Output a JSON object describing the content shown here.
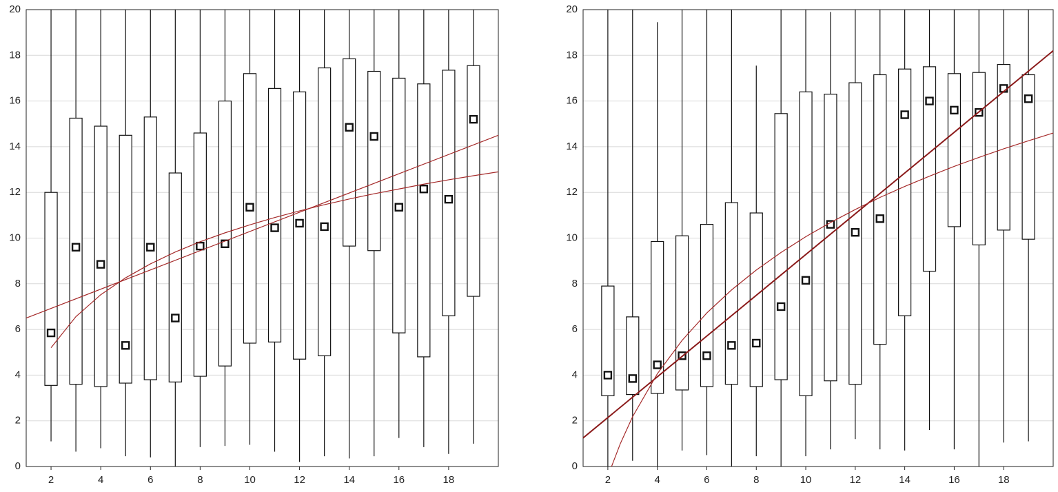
{
  "chart_data": [
    {
      "type": "box",
      "x": [
        2,
        3,
        4,
        5,
        6,
        7,
        8,
        9,
        10,
        11,
        12,
        13,
        14,
        15,
        16,
        17,
        18,
        19
      ],
      "boxes": {
        "min": [
          1.1,
          0.65,
          0.8,
          0.45,
          0.4,
          0,
          0.85,
          0.9,
          0.95,
          0.65,
          0.2,
          0.45,
          0.35,
          0.45,
          1.25,
          0.85,
          0.55,
          1.0
        ],
        "q1": [
          3.55,
          3.6,
          3.5,
          3.65,
          3.8,
          3.7,
          3.95,
          4.4,
          5.4,
          5.45,
          4.7,
          4.85,
          9.65,
          9.45,
          5.85,
          4.8,
          6.6,
          7.45
        ],
        "marker": [
          5.85,
          9.6,
          8.85,
          5.3,
          9.6,
          6.5,
          9.65,
          9.75,
          11.35,
          10.45,
          10.65,
          10.5,
          14.85,
          14.45,
          11.35,
          12.15,
          11.7,
          15.2
        ],
        "q3": [
          12.0,
          15.25,
          14.9,
          14.5,
          15.3,
          12.85,
          14.6,
          16.0,
          17.2,
          16.55,
          16.4,
          17.45,
          17.85,
          17.3,
          17.0,
          16.75,
          17.35,
          17.55
        ],
        "max": [
          20,
          20,
          20,
          20,
          20,
          20,
          20,
          20,
          20,
          20,
          20,
          20,
          20,
          20,
          20,
          20,
          20,
          20
        ]
      },
      "lines": [
        {
          "color": "#a52a2a",
          "width": 1.2,
          "x": [
            1,
            20
          ],
          "values": [
            6.5,
            14.5
          ]
        },
        {
          "color": "#a52a2a",
          "width": 1.2,
          "x": [
            2,
            3,
            4,
            5,
            6,
            7,
            8,
            9,
            10,
            11,
            12,
            13,
            14,
            15,
            16,
            17,
            18,
            19,
            20
          ],
          "values": [
            5.2,
            6.56,
            7.52,
            8.26,
            8.87,
            9.39,
            9.84,
            10.23,
            10.58,
            10.9,
            11.19,
            11.46,
            11.71,
            11.94,
            12.15,
            12.36,
            12.55,
            12.73,
            12.9
          ]
        }
      ],
      "xlim": [
        1,
        20
      ],
      "xticks": [
        2,
        4,
        6,
        8,
        10,
        12,
        14,
        16,
        18
      ],
      "ylim": [
        0,
        20
      ],
      "yticks": [
        0,
        2,
        4,
        6,
        8,
        10,
        12,
        14,
        16,
        18,
        20
      ],
      "grid": true
    },
    {
      "type": "box",
      "x": [
        2,
        3,
        4,
        5,
        6,
        7,
        8,
        9,
        10,
        11,
        12,
        13,
        14,
        15,
        16,
        17,
        18,
        19
      ],
      "boxes": {
        "min": [
          0,
          0.25,
          0,
          0.7,
          0.5,
          0,
          0.45,
          0,
          0.45,
          0.75,
          1.2,
          0.75,
          0.7,
          1.6,
          0.75,
          0,
          1.05,
          1.1
        ],
        "q1": [
          3.1,
          3.15,
          3.2,
          3.35,
          3.5,
          3.6,
          3.5,
          3.8,
          3.1,
          3.75,
          3.6,
          5.35,
          6.6,
          8.55,
          10.5,
          9.7,
          10.35,
          9.95
        ],
        "marker": [
          4.0,
          3.85,
          4.45,
          4.85,
          4.85,
          5.3,
          5.4,
          7.0,
          8.15,
          10.6,
          10.25,
          10.85,
          15.4,
          16.0,
          15.6,
          15.5,
          16.55,
          16.1
        ],
        "q3": [
          7.9,
          6.55,
          9.85,
          10.1,
          10.6,
          11.55,
          11.1,
          15.45,
          16.4,
          16.3,
          16.8,
          17.15,
          17.4,
          17.5,
          17.2,
          17.25,
          17.6,
          17.15
        ],
        "max": [
          20,
          20,
          19.45,
          20,
          20,
          20,
          17.55,
          20,
          20,
          19.9,
          20,
          20,
          20,
          20,
          20,
          20,
          20,
          20
        ]
      },
      "lines": [
        {
          "color": "#8b1a1a",
          "width": 2,
          "x": [
            1,
            20
          ],
          "values": [
            1.25,
            18.2
          ]
        },
        {
          "color": "#a52a2a",
          "width": 1.2,
          "x": [
            2.15,
            2.5,
            3,
            4,
            5,
            6,
            7,
            8,
            9,
            10,
            11,
            12,
            13,
            14,
            15,
            16,
            17,
            18,
            19,
            20
          ],
          "values": [
            0,
            0.99,
            2.18,
            4.06,
            5.52,
            6.72,
            7.73,
            8.6,
            9.37,
            10.06,
            10.68,
            11.25,
            11.78,
            12.26,
            12.71,
            13.14,
            13.53,
            13.91,
            14.26,
            14.6
          ]
        }
      ],
      "xlim": [
        1,
        20
      ],
      "xticks": [
        2,
        4,
        6,
        8,
        10,
        12,
        14,
        16,
        18
      ],
      "ylim": [
        0,
        20
      ],
      "yticks": [
        0,
        2,
        4,
        6,
        8,
        10,
        12,
        14,
        16,
        18,
        20
      ],
      "grid": true
    }
  ]
}
